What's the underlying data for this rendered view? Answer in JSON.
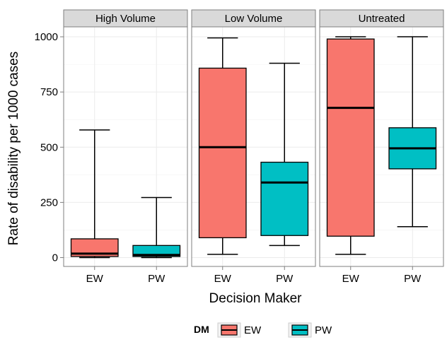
{
  "chart_data": {
    "type": "boxplot",
    "ylabel": "Rate of disability per 1000 cases",
    "xlabel": "Decision Maker",
    "ylim": [
      -40,
      1045
    ],
    "yticks": [
      0,
      250,
      500,
      750,
      1000
    ],
    "grid": true,
    "legend": {
      "title": "DM",
      "placement": "bottom",
      "entries": [
        {
          "label": "EW",
          "color": "#F8766D"
        },
        {
          "label": "PW",
          "color": "#00BFC4"
        }
      ]
    },
    "categories": [
      "EW",
      "PW"
    ],
    "facets": [
      {
        "title": "High Volume",
        "boxes": [
          {
            "category": "EW",
            "min": 0,
            "q1": 5,
            "median": 18,
            "q3": 85,
            "max": 578
          },
          {
            "category": "PW",
            "min": 0,
            "q1": 5,
            "median": 12,
            "q3": 55,
            "max": 272
          }
        ]
      },
      {
        "title": "Low Volume",
        "boxes": [
          {
            "category": "EW",
            "min": 15,
            "q1": 90,
            "median": 500,
            "q3": 858,
            "max": 995
          },
          {
            "category": "PW",
            "min": 55,
            "q1": 100,
            "median": 340,
            "q3": 432,
            "max": 880
          }
        ]
      },
      {
        "title": "Untreated",
        "boxes": [
          {
            "category": "EW",
            "min": 15,
            "q1": 97,
            "median": 678,
            "q3": 990,
            "max": 1000
          },
          {
            "category": "PW",
            "min": 140,
            "q1": 402,
            "median": 495,
            "q3": 588,
            "max": 1000
          }
        ]
      }
    ]
  }
}
